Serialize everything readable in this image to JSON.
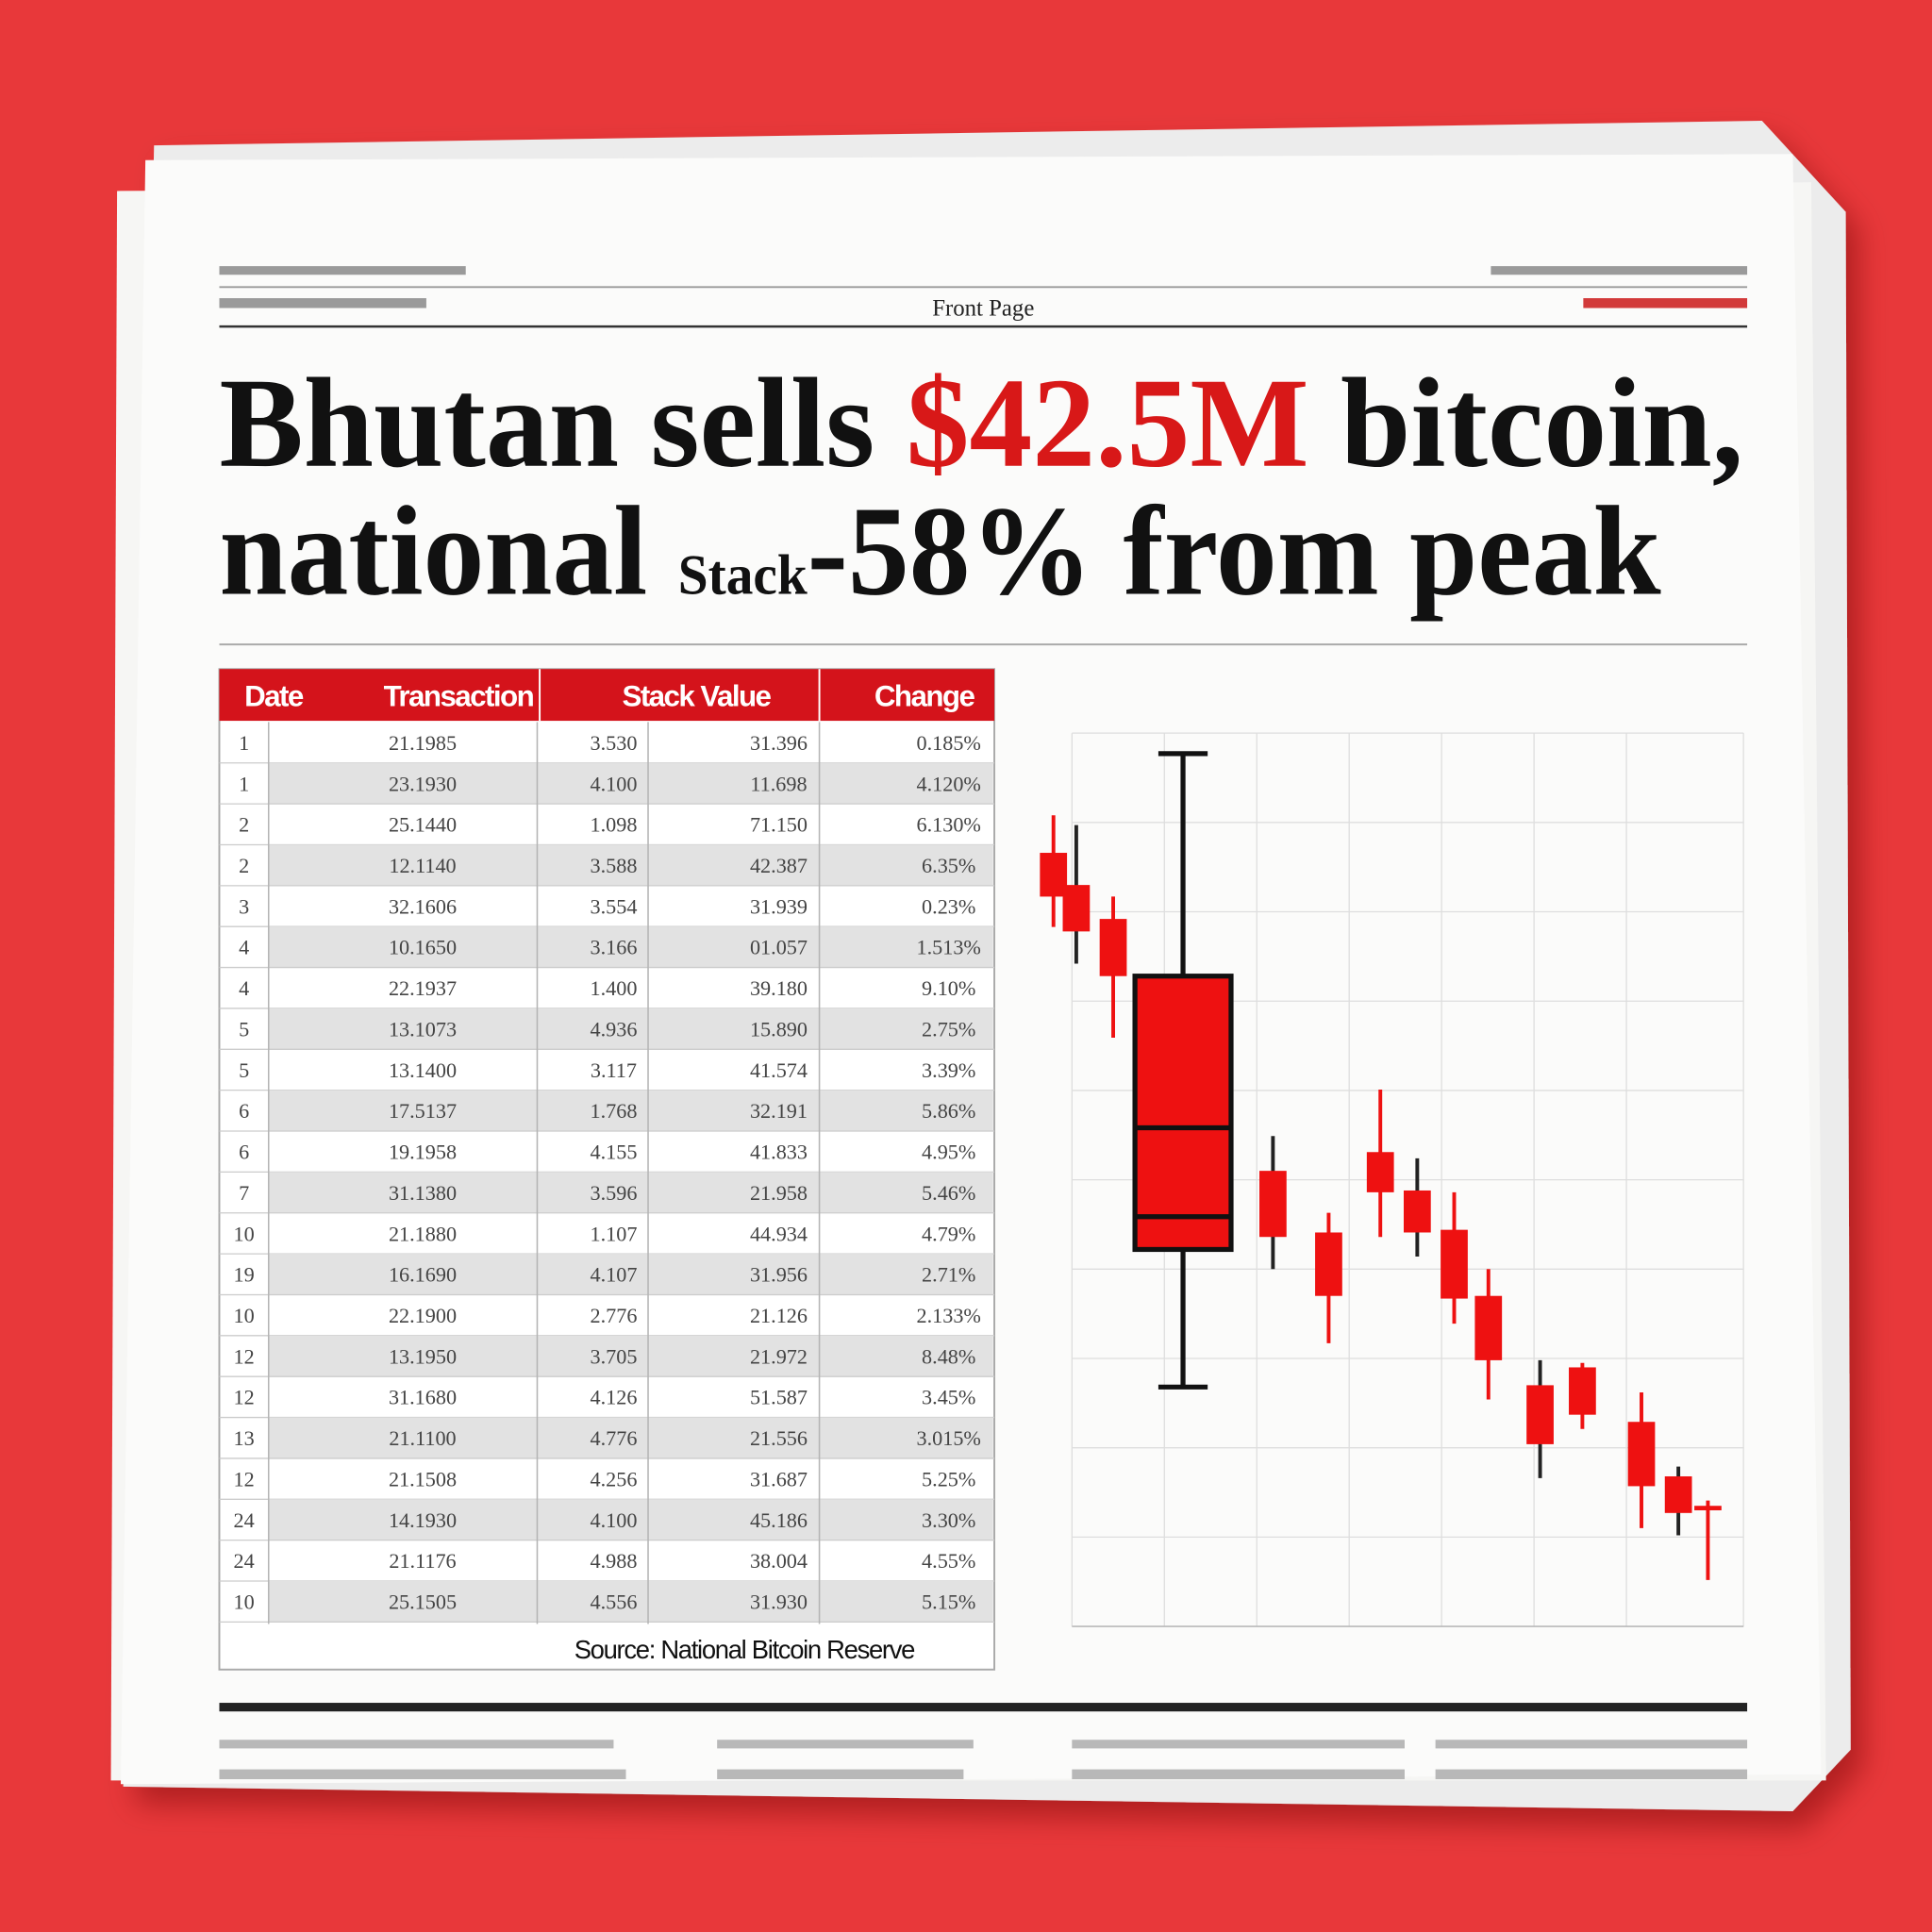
{
  "header": {
    "section": "Front Page"
  },
  "headline": {
    "line1": [
      "Bhutan sells ",
      "$42.5M",
      " bitcoin,"
    ],
    "line2": [
      "national ",
      "Stack",
      "-58% from peak"
    ]
  },
  "table": {
    "columns": [
      "Date",
      "Transaction",
      "Stack Value",
      "Change"
    ],
    "rows": [
      [
        "1",
        "21.1985",
        "3.530",
        "31.396",
        "0.185%"
      ],
      [
        "1",
        "23.1930",
        "4.100",
        "11.698",
        "4.120%"
      ],
      [
        "2",
        "25.1440",
        "1.098",
        "71.150",
        "6.130%"
      ],
      [
        "2",
        "12.1140",
        "3.588",
        "42.387",
        "6.35%"
      ],
      [
        "3",
        "32.1606",
        "3.554",
        "31.939",
        "0.23%"
      ],
      [
        "4",
        "10.1650",
        "3.166",
        "01.057",
        "1.513%"
      ],
      [
        "4",
        "22.1937",
        "1.400",
        "39.180",
        "9.10%"
      ],
      [
        "5",
        "13.1073",
        "4.936",
        "15.890",
        "2.75%"
      ],
      [
        "5",
        "13.1400",
        "3.117",
        "41.574",
        "3.39%"
      ],
      [
        "6",
        "17.5137",
        "1.768",
        "32.191",
        "5.86%"
      ],
      [
        "6",
        "19.1958",
        "4.155",
        "41.833",
        "4.95%"
      ],
      [
        "7",
        "31.1380",
        "3.596",
        "21.958",
        "5.46%"
      ],
      [
        "10",
        "21.1880",
        "1.107",
        "44.934",
        "4.79%"
      ],
      [
        "19",
        "16.1690",
        "4.107",
        "31.956",
        "2.71%"
      ],
      [
        "10",
        "22.1900",
        "2.776",
        "21.126",
        "2.133%"
      ],
      [
        "12",
        "13.1950",
        "3.705",
        "21.972",
        "8.48%"
      ],
      [
        "12",
        "31.1680",
        "4.126",
        "51.587",
        "3.45%"
      ],
      [
        "13",
        "21.1100",
        "4.776",
        "21.556",
        "3.015%"
      ],
      [
        "12",
        "21.1508",
        "4.256",
        "31.687",
        "5.25%"
      ],
      [
        "24",
        "14.1930",
        "4.100",
        "45.186",
        "3.30%"
      ],
      [
        "24",
        "21.1176",
        "4.988",
        "38.004",
        "4.55%"
      ],
      [
        "10",
        "25.1505",
        "4.556",
        "31.930",
        "5.15%"
      ]
    ],
    "source": "Source: National Bitcoin Reserve"
  },
  "chart_data": {
    "type": "candlestick",
    "xlim": [
      -5,
      100
    ],
    "ylim": [
      0,
      100
    ],
    "grid": true,
    "series": [
      {
        "color": "#ee1111",
        "x": [
          -2.8,
          0.6,
          6.1,
          16.5,
          29.9,
          38.2,
          45.9,
          51.4,
          56.9,
          62.0,
          69.7,
          76.0,
          84.8,
          90.3,
          94.7
        ],
        "high": [
          90.8,
          89.7,
          81.7,
          97.7,
          54.9,
          46.3,
          60.1,
          52.4,
          48.6,
          40.0,
          29.8,
          29.5,
          26.2,
          17.9,
          14.1
        ],
        "open": [
          86.6,
          83.0,
          79.2,
          72.8,
          51.0,
          44.1,
          53.1,
          48.8,
          44.4,
          37.0,
          27.0,
          29.0,
          22.9,
          16.8,
          13.5
        ],
        "close": [
          81.7,
          77.8,
          72.8,
          42.2,
          43.6,
          37.0,
          48.6,
          44.1,
          36.7,
          29.8,
          20.4,
          23.7,
          15.7,
          12.7,
          13.0
        ],
        "low": [
          78.3,
          74.2,
          65.9,
          26.8,
          40.0,
          31.7,
          43.6,
          41.4,
          33.9,
          25.4,
          16.6,
          22.1,
          11.0,
          10.2,
          5.2
        ]
      }
    ]
  }
}
